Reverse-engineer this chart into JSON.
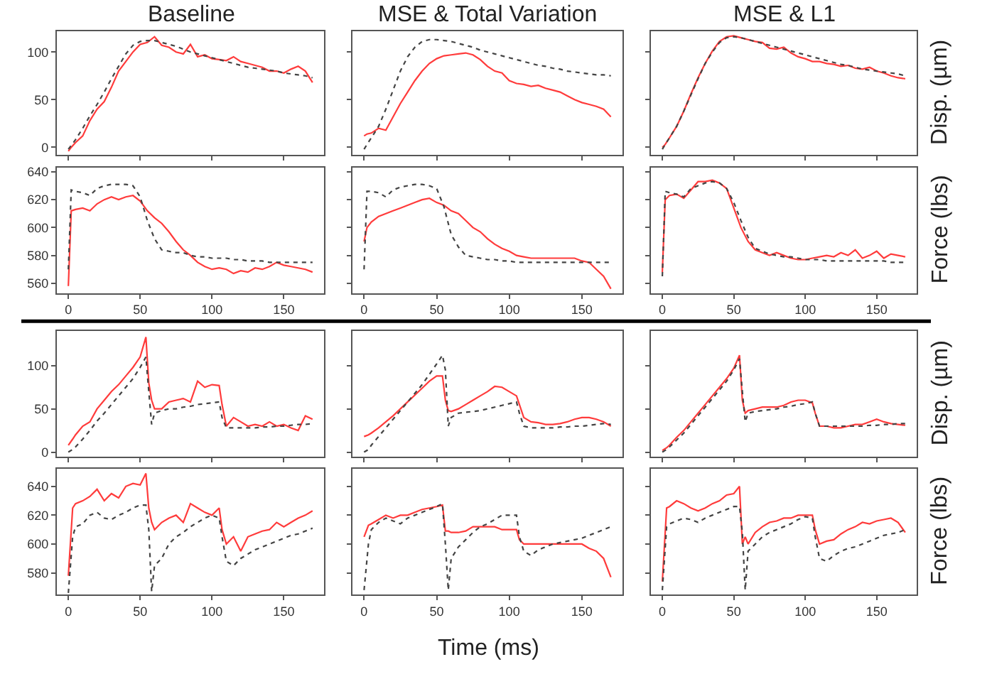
{
  "chart_data": [
    {
      "type": "line",
      "title": "Baseline",
      "x": [
        0,
        2,
        5,
        10,
        15,
        20,
        25,
        30,
        35,
        40,
        45,
        50,
        55,
        60,
        65,
        70,
        75,
        80,
        85,
        90,
        95,
        100,
        105,
        110,
        115,
        120,
        125,
        130,
        135,
        140,
        145,
        150,
        155,
        160,
        165,
        170
      ],
      "xlim": [
        -8,
        178
      ],
      "xticks": [
        0,
        50,
        100,
        150
      ],
      "ylim": [
        -8,
        122
      ],
      "yticks": [
        0,
        50,
        100
      ],
      "tick_labels": "y",
      "series": [
        {
          "color": "#ff3b3b",
          "line_style": "solid",
          "values": [
            -4,
            0,
            5,
            12,
            28,
            40,
            48,
            63,
            80,
            90,
            100,
            108,
            110,
            116,
            107,
            105,
            100,
            98,
            108,
            95,
            97,
            93,
            92,
            91,
            95,
            90,
            88,
            86,
            84,
            80,
            80,
            78,
            82,
            85,
            80,
            68
          ]
        },
        {
          "color": "#444444",
          "line_style": "dotted",
          "values": [
            -2,
            2,
            8,
            20,
            33,
            45,
            58,
            72,
            85,
            98,
            107,
            111,
            112,
            112,
            110,
            108,
            106,
            103,
            100,
            98,
            96,
            94,
            92,
            90,
            88,
            86,
            84,
            83,
            82,
            81,
            80,
            78,
            77,
            76,
            75,
            73
          ]
        }
      ]
    },
    {
      "type": "line",
      "title": "MSE & Total Variation",
      "x": [
        0,
        2,
        5,
        10,
        15,
        20,
        25,
        30,
        35,
        40,
        45,
        50,
        55,
        60,
        65,
        70,
        75,
        80,
        85,
        90,
        95,
        100,
        105,
        110,
        115,
        120,
        125,
        130,
        135,
        140,
        145,
        150,
        155,
        160,
        165,
        170
      ],
      "xlim": [
        -8,
        178
      ],
      "xticks": [
        0,
        50,
        100,
        150
      ],
      "ylim": [
        -8,
        122
      ],
      "yticks": [
        0,
        50,
        100
      ],
      "tick_labels": false,
      "series": [
        {
          "color": "#ff3b3b",
          "line_style": "solid",
          "values": [
            12,
            14,
            15,
            20,
            18,
            32,
            46,
            58,
            70,
            80,
            88,
            93,
            96,
            97,
            98,
            99,
            97,
            92,
            85,
            80,
            78,
            70,
            67,
            66,
            64,
            65,
            62,
            60,
            58,
            54,
            50,
            47,
            45,
            43,
            40,
            32
          ]
        },
        {
          "color": "#444444",
          "line_style": "dotted",
          "values": [
            -2,
            3,
            10,
            22,
            40,
            60,
            80,
            95,
            105,
            111,
            113,
            113,
            112,
            111,
            109,
            107,
            105,
            102,
            100,
            98,
            96,
            94,
            92,
            90,
            88,
            86,
            85,
            83,
            82,
            80,
            79,
            78,
            77,
            76,
            76,
            75
          ]
        }
      ]
    },
    {
      "type": "line",
      "title": "MSE & L1",
      "ylabel": "Disp. (µm)",
      "x": [
        0,
        2,
        5,
        10,
        15,
        20,
        25,
        30,
        35,
        40,
        45,
        50,
        55,
        60,
        65,
        70,
        75,
        80,
        85,
        90,
        95,
        100,
        105,
        110,
        115,
        120,
        125,
        130,
        135,
        140,
        145,
        150,
        155,
        160,
        165,
        170
      ],
      "xlim": [
        -8,
        178
      ],
      "xticks": [
        0,
        50,
        100,
        150
      ],
      "ylim": [
        -8,
        122
      ],
      "yticks": [
        0,
        50,
        100
      ],
      "tick_labels": false,
      "series": [
        {
          "color": "#ff3b3b",
          "line_style": "solid",
          "values": [
            0,
            3,
            10,
            22,
            38,
            56,
            73,
            88,
            101,
            111,
            116,
            117,
            115,
            113,
            111,
            110,
            104,
            103,
            105,
            99,
            95,
            93,
            90,
            90,
            88,
            87,
            85,
            86,
            83,
            82,
            84,
            80,
            78,
            75,
            73,
            72
          ]
        },
        {
          "color": "#444444",
          "line_style": "dotted",
          "values": [
            -2,
            3,
            10,
            22,
            38,
            55,
            72,
            88,
            100,
            110,
            115,
            116,
            115,
            113,
            111,
            109,
            107,
            105,
            103,
            101,
            99,
            97,
            95,
            93,
            91,
            89,
            87,
            86,
            84,
            82,
            81,
            80,
            79,
            78,
            77,
            75
          ]
        }
      ]
    },
    {
      "type": "line",
      "x": [
        0,
        2,
        5,
        10,
        15,
        20,
        25,
        30,
        35,
        40,
        45,
        50,
        55,
        60,
        65,
        70,
        75,
        80,
        85,
        90,
        95,
        100,
        105,
        110,
        115,
        120,
        125,
        130,
        135,
        140,
        145,
        150,
        155,
        160,
        165,
        170
      ],
      "xlim": [
        -8,
        178
      ],
      "xticks": [
        0,
        50,
        100,
        150
      ],
      "ylim": [
        553,
        643
      ],
      "yticks": [
        560,
        580,
        600,
        620,
        640
      ],
      "series": [
        {
          "color": "#ff3b3b",
          "line_style": "solid",
          "values": [
            558,
            612,
            613,
            614,
            612,
            617,
            620,
            622,
            620,
            622,
            623,
            619,
            612,
            607,
            603,
            597,
            590,
            584,
            580,
            575,
            572,
            570,
            571,
            570,
            567,
            569,
            568,
            571,
            570,
            572,
            575,
            573,
            572,
            571,
            570,
            568
          ]
        },
        {
          "color": "#444444",
          "line_style": "dotted",
          "values": [
            570,
            627,
            626,
            625,
            623,
            628,
            630,
            631,
            631,
            631,
            630,
            622,
            605,
            592,
            584,
            583,
            582,
            582,
            580,
            579,
            579,
            578,
            578,
            578,
            577,
            577,
            576,
            576,
            576,
            575,
            575,
            575,
            575,
            575,
            575,
            575
          ]
        }
      ]
    },
    {
      "type": "line",
      "x": [
        0,
        2,
        5,
        10,
        15,
        20,
        25,
        30,
        35,
        40,
        45,
        50,
        55,
        60,
        65,
        70,
        75,
        80,
        85,
        90,
        95,
        100,
        105,
        110,
        115,
        120,
        125,
        130,
        135,
        140,
        145,
        150,
        155,
        160,
        165,
        170
      ],
      "xlim": [
        -8,
        178
      ],
      "xticks": [
        0,
        50,
        100,
        150
      ],
      "ylim": [
        553,
        643
      ],
      "yticks": [
        560,
        580,
        600,
        620,
        640
      ],
      "tick_labels": "x",
      "series": [
        {
          "color": "#ff3b3b",
          "line_style": "solid",
          "values": [
            590,
            600,
            604,
            608,
            610,
            612,
            614,
            616,
            618,
            620,
            621,
            618,
            616,
            612,
            610,
            605,
            600,
            597,
            592,
            588,
            585,
            583,
            580,
            579,
            578,
            578,
            578,
            578,
            578,
            578,
            578,
            576,
            575,
            570,
            565,
            556
          ]
        },
        {
          "color": "#444444",
          "line_style": "dotted",
          "values": [
            570,
            626,
            626,
            625,
            622,
            627,
            629,
            630,
            631,
            631,
            630,
            628,
            615,
            595,
            586,
            580,
            579,
            578,
            577,
            577,
            576,
            576,
            575,
            575,
            575,
            575,
            575,
            575,
            575,
            575,
            575,
            575,
            575,
            575,
            575,
            575
          ]
        }
      ]
    },
    {
      "type": "line",
      "ylabel": "Force (lbs)",
      "x": [
        0,
        2,
        5,
        10,
        15,
        20,
        25,
        30,
        35,
        40,
        45,
        50,
        55,
        60,
        65,
        70,
        75,
        80,
        85,
        90,
        95,
        100,
        105,
        110,
        115,
        120,
        125,
        130,
        135,
        140,
        145,
        150,
        155,
        160,
        165,
        170
      ],
      "xlim": [
        -8,
        178
      ],
      "xticks": [
        0,
        50,
        100,
        150
      ],
      "ylim": [
        553,
        643
      ],
      "yticks": [
        560,
        580,
        600,
        620,
        640
      ],
      "tick_labels": "x",
      "series": [
        {
          "color": "#ff3b3b",
          "line_style": "solid",
          "values": [
            568,
            620,
            623,
            624,
            621,
            627,
            633,
            633,
            634,
            632,
            628,
            614,
            600,
            590,
            584,
            582,
            580,
            582,
            580,
            578,
            577,
            577,
            578,
            579,
            580,
            579,
            582,
            580,
            584,
            578,
            580,
            583,
            578,
            581,
            580,
            579
          ]
        },
        {
          "color": "#444444",
          "line_style": "dotted",
          "values": [
            565,
            626,
            625,
            624,
            622,
            628,
            630,
            632,
            633,
            632,
            628,
            618,
            605,
            593,
            585,
            583,
            581,
            580,
            579,
            579,
            578,
            577,
            577,
            577,
            576,
            576,
            576,
            576,
            576,
            576,
            576,
            576,
            576,
            575,
            575,
            575
          ]
        }
      ]
    },
    {
      "type": "line",
      "x": [
        0,
        3,
        5,
        10,
        15,
        20,
        25,
        30,
        35,
        40,
        45,
        50,
        54,
        56,
        58,
        60,
        65,
        70,
        75,
        80,
        85,
        90,
        95,
        100,
        105,
        107,
        110,
        115,
        120,
        125,
        130,
        135,
        140,
        145,
        150,
        155,
        160,
        165,
        170
      ],
      "xlim": [
        -8,
        178
      ],
      "xticks": [
        0,
        50,
        100,
        150
      ],
      "ylim": [
        -5,
        140
      ],
      "yticks": [
        0,
        50,
        100
      ],
      "tick_labels": "y",
      "series": [
        {
          "color": "#ff3b3b",
          "line_style": "solid",
          "values": [
            8,
            15,
            20,
            30,
            35,
            50,
            60,
            70,
            78,
            88,
            98,
            110,
            133,
            80,
            60,
            50,
            50,
            58,
            60,
            62,
            58,
            82,
            75,
            78,
            77,
            55,
            30,
            40,
            35,
            30,
            32,
            30,
            35,
            30,
            32,
            28,
            25,
            42,
            38
          ]
        },
        {
          "color": "#444444",
          "line_style": "dotted",
          "values": [
            0,
            3,
            6,
            15,
            25,
            36,
            45,
            55,
            65,
            75,
            85,
            98,
            110,
            70,
            32,
            45,
            48,
            50,
            50,
            52,
            53,
            55,
            56,
            57,
            58,
            40,
            28,
            28,
            28,
            28,
            28,
            29,
            29,
            30,
            30,
            31,
            32,
            32,
            33
          ]
        }
      ]
    },
    {
      "type": "line",
      "x": [
        0,
        3,
        5,
        10,
        15,
        20,
        25,
        30,
        35,
        40,
        45,
        50,
        54,
        56,
        58,
        60,
        65,
        70,
        75,
        80,
        85,
        90,
        95,
        100,
        105,
        107,
        110,
        115,
        120,
        125,
        130,
        135,
        140,
        145,
        150,
        155,
        160,
        165,
        170
      ],
      "xlim": [
        -8,
        178
      ],
      "xticks": [
        0,
        50,
        100,
        150
      ],
      "ylim": [
        -5,
        140
      ],
      "yticks": [
        0,
        50,
        100
      ],
      "tick_labels": false,
      "series": [
        {
          "color": "#ff3b3b",
          "line_style": "solid",
          "values": [
            18,
            20,
            22,
            28,
            35,
            42,
            50,
            58,
            66,
            74,
            82,
            88,
            88,
            60,
            48,
            47,
            50,
            55,
            60,
            65,
            70,
            76,
            75,
            70,
            65,
            55,
            40,
            35,
            34,
            32,
            32,
            33,
            35,
            38,
            40,
            40,
            38,
            35,
            30
          ]
        },
        {
          "color": "#444444",
          "line_style": "dotted",
          "values": [
            0,
            3,
            8,
            18,
            28,
            38,
            48,
            58,
            68,
            78,
            90,
            102,
            112,
            95,
            30,
            40,
            45,
            46,
            47,
            48,
            50,
            52,
            54,
            56,
            58,
            45,
            30,
            28,
            28,
            28,
            28,
            29,
            29,
            30,
            30,
            31,
            32,
            33,
            32
          ]
        }
      ]
    },
    {
      "type": "line",
      "ylabel": "Disp. (µm)",
      "x": [
        0,
        3,
        5,
        10,
        15,
        20,
        25,
        30,
        35,
        40,
        45,
        50,
        54,
        56,
        58,
        60,
        65,
        70,
        75,
        80,
        85,
        90,
        95,
        100,
        105,
        107,
        110,
        115,
        120,
        125,
        130,
        135,
        140,
        145,
        150,
        155,
        160,
        165,
        170
      ],
      "xlim": [
        -8,
        178
      ],
      "xticks": [
        0,
        50,
        100,
        150
      ],
      "ylim": [
        -5,
        140
      ],
      "yticks": [
        0,
        50,
        100
      ],
      "tick_labels": false,
      "series": [
        {
          "color": "#ff3b3b",
          "line_style": "solid",
          "values": [
            2,
            5,
            8,
            17,
            25,
            35,
            45,
            55,
            65,
            75,
            85,
            97,
            112,
            60,
            45,
            48,
            50,
            52,
            52,
            52,
            54,
            58,
            60,
            60,
            57,
            45,
            30,
            30,
            28,
            28,
            30,
            32,
            32,
            35,
            38,
            35,
            33,
            32,
            31
          ]
        },
        {
          "color": "#444444",
          "line_style": "dotted",
          "values": [
            0,
            3,
            6,
            14,
            22,
            32,
            42,
            52,
            62,
            72,
            82,
            95,
            108,
            70,
            35,
            45,
            47,
            48,
            49,
            50,
            52,
            53,
            55,
            56,
            58,
            45,
            30,
            30,
            30,
            30,
            30,
            30,
            30,
            31,
            31,
            32,
            32,
            33,
            33
          ]
        }
      ]
    },
    {
      "type": "line",
      "x": [
        0,
        3,
        5,
        10,
        15,
        20,
        25,
        30,
        35,
        40,
        45,
        50,
        54,
        56,
        58,
        60,
        65,
        70,
        75,
        80,
        85,
        90,
        95,
        100,
        105,
        107,
        110,
        115,
        120,
        125,
        130,
        135,
        140,
        145,
        150,
        155,
        160,
        165,
        170
      ],
      "xlim": [
        -8,
        178
      ],
      "xticks": [
        0,
        50,
        100,
        150
      ],
      "ylim": [
        565,
        652
      ],
      "yticks": [
        580,
        600,
        620,
        640
      ],
      "series": [
        {
          "color": "#ff3b3b",
          "line_style": "solid",
          "values": [
            578,
            625,
            628,
            630,
            633,
            638,
            630,
            635,
            632,
            640,
            642,
            641,
            649,
            625,
            615,
            610,
            615,
            618,
            620,
            615,
            628,
            625,
            622,
            620,
            625,
            610,
            600,
            605,
            595,
            605,
            607,
            609,
            610,
            615,
            612,
            615,
            618,
            620,
            623
          ]
        },
        {
          "color": "#444444",
          "line_style": "dotted",
          "values": [
            566,
            605,
            612,
            614,
            620,
            622,
            618,
            617,
            620,
            622,
            625,
            627,
            627,
            610,
            567,
            585,
            590,
            600,
            605,
            608,
            612,
            615,
            618,
            620,
            618,
            605,
            588,
            585,
            590,
            593,
            596,
            598,
            600,
            602,
            604,
            606,
            607,
            609,
            611
          ]
        }
      ]
    },
    {
      "type": "line",
      "xlabel": "Time (ms)",
      "x": [
        0,
        3,
        5,
        10,
        15,
        20,
        25,
        30,
        35,
        40,
        45,
        50,
        54,
        56,
        58,
        60,
        65,
        70,
        75,
        80,
        85,
        90,
        95,
        100,
        105,
        107,
        110,
        115,
        120,
        125,
        130,
        135,
        140,
        145,
        150,
        155,
        160,
        165,
        170
      ],
      "xlim": [
        -8,
        178
      ],
      "xticks": [
        0,
        50,
        100,
        150
      ],
      "ylim": [
        565,
        652
      ],
      "yticks": [
        580,
        600,
        620,
        640
      ],
      "tick_labels": "x",
      "series": [
        {
          "color": "#ff3b3b",
          "line_style": "solid",
          "values": [
            605,
            613,
            614,
            617,
            620,
            618,
            620,
            620,
            622,
            624,
            625,
            626,
            627,
            609,
            609,
            608,
            608,
            609,
            612,
            612,
            612,
            612,
            610,
            610,
            610,
            603,
            600,
            600,
            600,
            600,
            600,
            600,
            600,
            600,
            600,
            597,
            595,
            590,
            577
          ]
        },
        {
          "color": "#444444",
          "line_style": "dotted",
          "values": [
            568,
            600,
            610,
            615,
            618,
            616,
            614,
            618,
            620,
            622,
            624,
            626,
            628,
            600,
            568,
            590,
            598,
            603,
            608,
            612,
            614,
            617,
            620,
            620,
            620,
            605,
            595,
            592,
            596,
            598,
            600,
            601,
            602,
            603,
            604,
            606,
            608,
            610,
            612
          ]
        }
      ]
    },
    {
      "type": "line",
      "ylabel": "Force (lbs)",
      "x": [
        0,
        3,
        5,
        10,
        15,
        20,
        25,
        30,
        35,
        40,
        45,
        50,
        54,
        56,
        58,
        60,
        65,
        70,
        75,
        80,
        85,
        90,
        95,
        100,
        105,
        107,
        110,
        115,
        120,
        125,
        130,
        135,
        140,
        145,
        150,
        155,
        160,
        165,
        170
      ],
      "xlim": [
        -8,
        178
      ],
      "xticks": [
        0,
        50,
        100,
        150
      ],
      "ylim": [
        565,
        652
      ],
      "yticks": [
        580,
        600,
        620,
        640
      ],
      "tick_labels": "x",
      "series": [
        {
          "color": "#ff3b3b",
          "line_style": "solid",
          "values": [
            574,
            625,
            626,
            630,
            628,
            625,
            623,
            625,
            628,
            630,
            634,
            635,
            640,
            600,
            605,
            600,
            608,
            612,
            615,
            616,
            618,
            618,
            620,
            620,
            620,
            610,
            600,
            602,
            603,
            607,
            610,
            612,
            615,
            614,
            616,
            617,
            618,
            615,
            608
          ]
        },
        {
          "color": "#444444",
          "line_style": "dotted",
          "values": [
            568,
            612,
            614,
            616,
            618,
            617,
            615,
            618,
            620,
            622,
            624,
            626,
            626,
            608,
            568,
            595,
            600,
            605,
            608,
            610,
            612,
            614,
            617,
            619,
            618,
            605,
            590,
            588,
            592,
            595,
            597,
            598,
            600,
            602,
            604,
            606,
            607,
            608,
            610
          ]
        }
      ]
    }
  ]
}
